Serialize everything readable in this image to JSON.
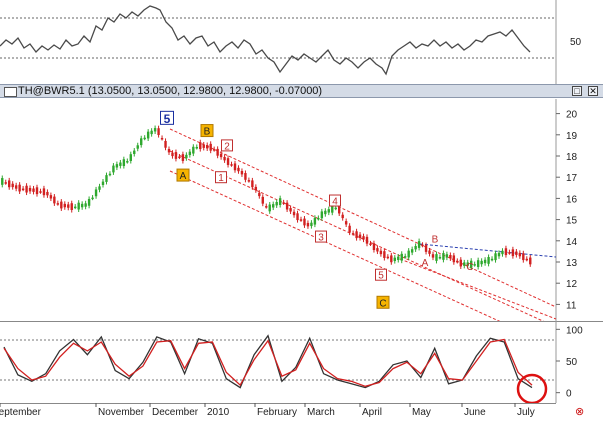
{
  "window": {
    "title": "TH@BWR5.1 (13.0500, 13.0500, 12.9800, 12.9800, -0.07000)",
    "restore_label": "□",
    "close_label": "✕",
    "status_icon": "close-circle-icon",
    "status_glyph": "⊗"
  },
  "chart_data": [
    {
      "type": "line",
      "panel": "top-indicator",
      "title": "",
      "xlabel": "",
      "ylabel": "",
      "ylim": [
        0,
        100
      ],
      "reference_lines": [
        70,
        50,
        30
      ],
      "yticks": [
        "50"
      ],
      "grid": false
    },
    {
      "type": "candlestick",
      "panel": "price",
      "title": "TH@BWR5.1 (13.0500, 13.0500, 12.9800, 12.9800, -0.07000)",
      "xlabel": "",
      "ylabel": "",
      "ylim": [
        10.5,
        20.5
      ],
      "yticks": [
        "20",
        "19",
        "18",
        "17",
        "16",
        "15",
        "14",
        "13",
        "12",
        "11"
      ],
      "x": [
        "Sep",
        "Sep",
        "Oct",
        "Oct",
        "Oct",
        "Oct",
        "Nov",
        "Nov",
        "Nov",
        "Nov",
        "Dec",
        "Dec",
        "Dec",
        "Dec",
        "Jan",
        "Jan",
        "Jan",
        "Jan",
        "Feb",
        "Feb",
        "Feb",
        "Feb",
        "Mar",
        "Mar",
        "Mar",
        "Mar",
        "Apr",
        "Apr",
        "Apr",
        "Apr",
        "May",
        "May",
        "May",
        "May",
        "Jun",
        "Jun",
        "Jun",
        "Jun",
        "Jul"
      ],
      "series": [
        {
          "values": [
            16.8,
            16.5,
            16.4,
            16.3,
            15.7,
            15.6,
            15.7,
            16.6,
            17.5,
            17.8,
            18.8,
            19.3,
            18.1,
            17.9,
            18.5,
            18.4,
            17.8,
            17.3,
            16.6,
            15.5,
            15.9,
            15.2,
            14.7,
            15.3,
            15.6,
            14.4,
            14.1,
            13.5,
            13.1,
            13.3,
            13.9,
            13.2,
            13.3,
            12.9,
            12.9,
            13.1,
            13.5,
            13.4,
            13.0
          ]
        }
      ],
      "wave_labels": [
        {
          "text": "5",
          "x": "Dec",
          "y": 19.8
        },
        {
          "text": "B",
          "x": "Jan",
          "y": 19.2
        },
        {
          "text": "A",
          "x": "Dec",
          "y": 17.1
        },
        {
          "text": "2",
          "x": "Jan",
          "y": 18.5
        },
        {
          "text": "1",
          "x": "Jan",
          "y": 17.0
        },
        {
          "text": "4",
          "x": "Mar",
          "y": 15.9
        },
        {
          "text": "3",
          "x": "Mar",
          "y": 14.2
        },
        {
          "text": "5",
          "x": "Apr",
          "y": 12.4
        },
        {
          "text": "C",
          "x": "Apr",
          "y": 11.1
        },
        {
          "text": "B",
          "x": "May",
          "y": 14.1
        },
        {
          "text": "A",
          "x": "May",
          "y": 13.0
        },
        {
          "text": "C",
          "x": "Jun",
          "y": 12.8
        }
      ],
      "channel_lines": "red dashed channels + blue dashed trendline"
    },
    {
      "type": "line",
      "panel": "stochastic",
      "title": "",
      "xlabel": "",
      "ylabel": "",
      "ylim": [
        -10,
        110
      ],
      "reference_lines": [
        80,
        20
      ],
      "yticks": [
        "100",
        "50",
        "0"
      ],
      "series": [
        {
          "values": [
            72,
            28,
            18,
            30,
            66,
            84,
            60,
            88,
            35,
            22,
            48,
            88,
            80,
            30,
            85,
            78,
            22,
            8,
            60,
            90,
            18,
            40,
            86,
            30,
            20,
            14,
            8,
            18,
            44,
            50,
            24,
            70,
            14,
            20,
            58,
            86,
            80,
            22,
            8
          ]
        },
        {
          "values": [
            70,
            38,
            20,
            26,
            56,
            78,
            66,
            80,
            45,
            26,
            42,
            80,
            82,
            38,
            78,
            80,
            32,
            12,
            52,
            82,
            26,
            36,
            78,
            38,
            22,
            18,
            10,
            16,
            38,
            48,
            30,
            62,
            22,
            20,
            50,
            80,
            84,
            32,
            12
          ]
        }
      ],
      "x_tick_labels": [
        "September",
        "November",
        "December",
        "2010",
        "February",
        "March",
        "April",
        "May",
        "June",
        "July"
      ]
    }
  ]
}
